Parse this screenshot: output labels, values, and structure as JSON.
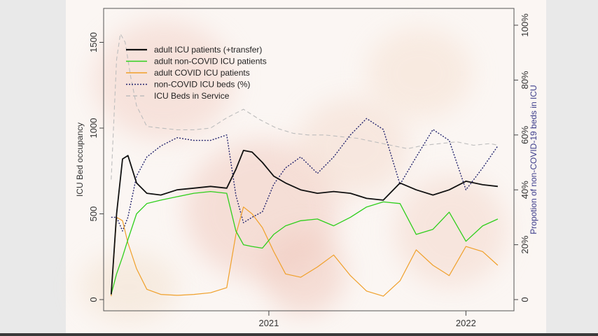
{
  "chart_data": {
    "type": "line",
    "xlabel": "",
    "ylabel": "ICU Bed occupancy",
    "y2label": "Propotion of non-COVID-19 beds in ICU",
    "ylim": [
      0,
      1600
    ],
    "y2lim": [
      0,
      100
    ],
    "xlim": [
      "2020-03-01",
      "2022-03-31"
    ],
    "y_ticks": [
      "0",
      "500",
      "1000",
      "1500"
    ],
    "y2_ticks": [
      "0",
      "20%",
      "40%",
      "60%",
      "80%",
      "100%"
    ],
    "x_ticks": [
      {
        "label": "2021",
        "date": "2021-01-01"
      },
      {
        "label": "2022",
        "date": "2022-01-01"
      }
    ],
    "legend": {
      "placement": "top-left",
      "entries": [
        {
          "name": "adult ICU patients (+transfer)",
          "color": "#111111",
          "style": "solid"
        },
        {
          "name": "adult non-COVID ICU patients",
          "color": "#2fcf1c",
          "style": "solid"
        },
        {
          "name": "adult COVID ICU patients",
          "color": "#f0a02a",
          "style": "solid"
        },
        {
          "name": "non-COVID ICU beds (%)",
          "color": "#25256e",
          "style": "dotted"
        },
        {
          "name": "ICU Beds in Service",
          "color": "#bdbdbd",
          "style": "dashed"
        }
      ]
    },
    "series": [
      {
        "name": "adult ICU patients (+transfer)",
        "axis": "left",
        "x": [
          "2020-03-15",
          "2020-03-25",
          "2020-04-05",
          "2020-04-15",
          "2020-05-01",
          "2020-05-20",
          "2020-06-15",
          "2020-07-15",
          "2020-08-15",
          "2020-09-15",
          "2020-10-15",
          "2020-11-01",
          "2020-11-15",
          "2020-12-01",
          "2020-12-20",
          "2021-01-10",
          "2021-02-01",
          "2021-03-01",
          "2021-04-01",
          "2021-05-01",
          "2021-06-01",
          "2021-07-01",
          "2021-08-01",
          "2021-09-01",
          "2021-10-01",
          "2021-11-01",
          "2021-12-01",
          "2022-01-01",
          "2022-02-01",
          "2022-03-01"
        ],
        "y": [
          30,
          500,
          820,
          840,
          680,
          620,
          610,
          640,
          650,
          660,
          650,
          760,
          870,
          860,
          800,
          720,
          680,
          640,
          620,
          630,
          620,
          590,
          580,
          680,
          640,
          610,
          640,
          690,
          670,
          660
        ]
      },
      {
        "name": "adult non-COVID ICU patients",
        "axis": "left",
        "x": [
          "2020-03-15",
          "2020-03-25",
          "2020-04-05",
          "2020-04-15",
          "2020-05-01",
          "2020-05-20",
          "2020-06-15",
          "2020-07-15",
          "2020-08-15",
          "2020-09-15",
          "2020-10-15",
          "2020-11-01",
          "2020-11-15",
          "2020-12-01",
          "2020-12-20",
          "2021-01-10",
          "2021-02-01",
          "2021-03-01",
          "2021-04-01",
          "2021-05-01",
          "2021-06-01",
          "2021-07-01",
          "2021-08-01",
          "2021-09-01",
          "2021-10-01",
          "2021-11-01",
          "2021-12-01",
          "2022-01-01",
          "2022-02-01",
          "2022-03-01"
        ],
        "y": [
          30,
          150,
          250,
          350,
          500,
          560,
          580,
          600,
          620,
          630,
          620,
          400,
          320,
          310,
          300,
          380,
          430,
          460,
          470,
          430,
          480,
          540,
          570,
          560,
          380,
          410,
          510,
          340,
          430,
          470
        ]
      },
      {
        "name": "adult COVID ICU patients",
        "axis": "left",
        "x": [
          "2020-03-15",
          "2020-03-25",
          "2020-04-05",
          "2020-04-15",
          "2020-05-01",
          "2020-05-20",
          "2020-06-15",
          "2020-07-15",
          "2020-08-15",
          "2020-09-15",
          "2020-10-15",
          "2020-11-01",
          "2020-11-15",
          "2020-12-01",
          "2020-12-20",
          "2021-01-10",
          "2021-02-01",
          "2021-03-01",
          "2021-04-01",
          "2021-05-01",
          "2021-06-01",
          "2021-07-01",
          "2021-08-01",
          "2021-09-01",
          "2021-10-01",
          "2021-11-01",
          "2021-12-01",
          "2022-01-01",
          "2022-02-01",
          "2022-03-01"
        ],
        "y": [
          20,
          480,
          460,
          330,
          180,
          60,
          30,
          25,
          30,
          40,
          70,
          380,
          540,
          500,
          420,
          280,
          150,
          130,
          190,
          260,
          140,
          50,
          20,
          110,
          290,
          200,
          140,
          310,
          280,
          200
        ]
      },
      {
        "name": "non-COVID ICU beds (%)",
        "axis": "right",
        "x": [
          "2020-03-15",
          "2020-03-25",
          "2020-04-05",
          "2020-04-15",
          "2020-05-01",
          "2020-05-20",
          "2020-06-15",
          "2020-07-15",
          "2020-08-15",
          "2020-09-15",
          "2020-10-15",
          "2020-11-01",
          "2020-11-15",
          "2020-12-01",
          "2020-12-20",
          "2021-01-10",
          "2021-02-01",
          "2021-03-01",
          "2021-04-01",
          "2021-05-01",
          "2021-06-01",
          "2021-07-01",
          "2021-08-01",
          "2021-09-01",
          "2021-10-01",
          "2021-11-01",
          "2021-12-01",
          "2022-01-01",
          "2022-02-01",
          "2022-03-01"
        ],
        "y": [
          30,
          30,
          25,
          30,
          45,
          52,
          56,
          59,
          58,
          58,
          60,
          38,
          28,
          30,
          32,
          42,
          48,
          52,
          46,
          52,
          60,
          66,
          62,
          42,
          52,
          62,
          58,
          40,
          48,
          56
        ]
      },
      {
        "name": "ICU Beds in Service",
        "axis": "left",
        "x": [
          "2020-03-15",
          "2020-03-25",
          "2020-04-01",
          "2020-04-10",
          "2020-04-20",
          "2020-05-01",
          "2020-05-20",
          "2020-06-15",
          "2020-07-15",
          "2020-08-15",
          "2020-09-15",
          "2020-10-15",
          "2020-11-15",
          "2020-12-15",
          "2021-01-15",
          "2021-02-15",
          "2021-03-15",
          "2021-04-15",
          "2021-05-15",
          "2021-06-15",
          "2021-07-15",
          "2021-08-15",
          "2021-09-15",
          "2021-10-15",
          "2021-11-15",
          "2021-12-15",
          "2022-01-15",
          "2022-02-15",
          "2022-03-01"
        ],
        "y": [
          700,
          1400,
          1550,
          1500,
          1300,
          1130,
          1010,
          1000,
          990,
          990,
          1000,
          1060,
          1110,
          1050,
          1000,
          970,
          960,
          960,
          950,
          940,
          920,
          900,
          880,
          900,
          910,
          920,
          900,
          910,
          900
        ]
      }
    ]
  }
}
